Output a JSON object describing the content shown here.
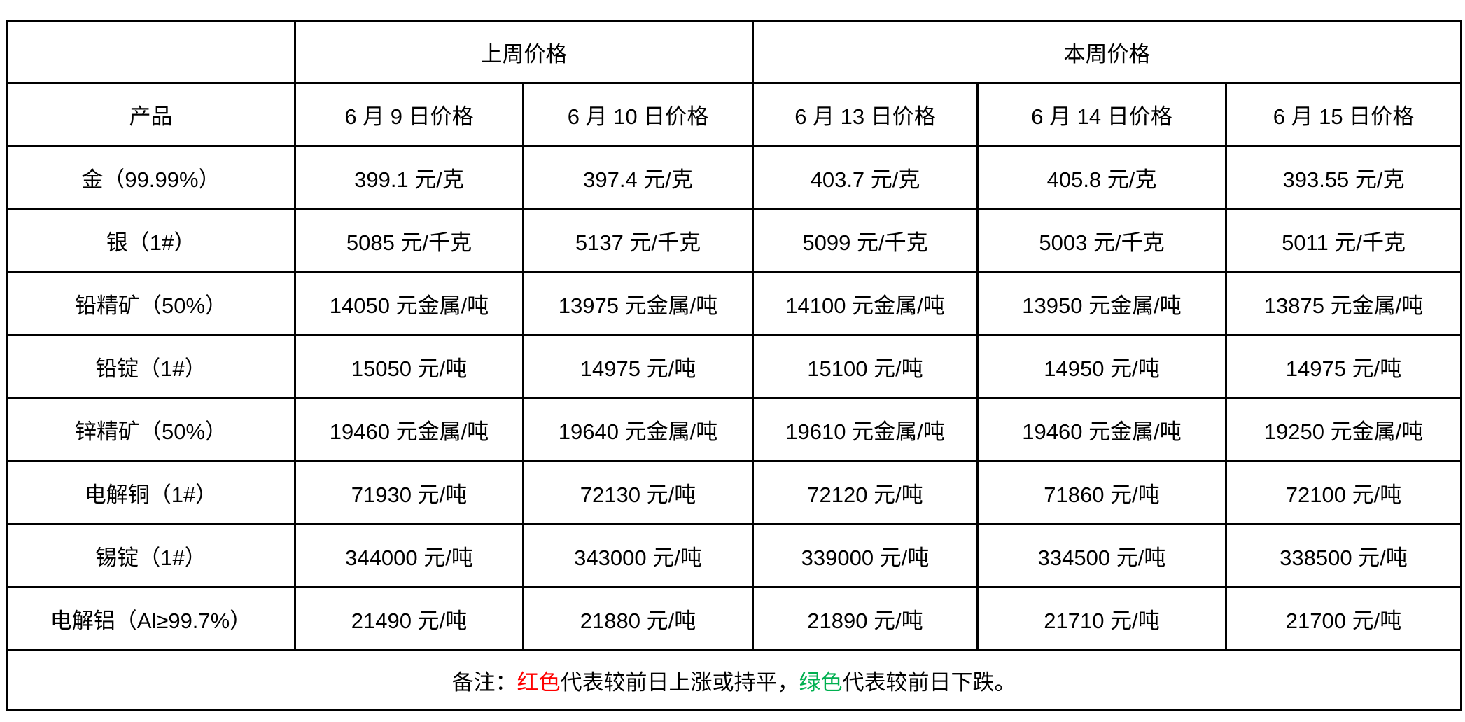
{
  "table": {
    "week_headers": {
      "last_week": "上周价格",
      "this_week": "本周价格"
    },
    "product_header": "产品",
    "date_headers": [
      "6 月 9 日价格",
      "6 月 10 日价格",
      "6 月 13 日价格",
      "6 月 14 日价格",
      "6 月 15 日价格"
    ],
    "rows": [
      {
        "product": "金（99.99%）",
        "prices": [
          {
            "text": "399.1 元/克",
            "trend": "up"
          },
          {
            "text": "397.4 元/克",
            "trend": "down"
          },
          {
            "text": "403.7 元/克",
            "trend": "up"
          },
          {
            "text": "405.8 元/克",
            "trend": "up"
          },
          {
            "text": "393.55 元/克",
            "trend": "down"
          }
        ]
      },
      {
        "product": "银（1#）",
        "prices": [
          {
            "text": "5085 元/千克",
            "trend": "down"
          },
          {
            "text": "5137 元/千克",
            "trend": "up"
          },
          {
            "text": "5099 元/千克",
            "trend": "down"
          },
          {
            "text": "5003 元/千克",
            "trend": "down"
          },
          {
            "text": "5011 元/千克",
            "trend": "up"
          }
        ]
      },
      {
        "product": "铅精矿（50%）",
        "prices": [
          {
            "text": "14050 元金属/吨",
            "trend": "up"
          },
          {
            "text": "13975 元金属/吨",
            "trend": "down"
          },
          {
            "text": "14100 元金属/吨",
            "trend": "up"
          },
          {
            "text": "13950 元金属/吨",
            "trend": "down"
          },
          {
            "text": "13875 元金属/吨",
            "trend": "down"
          }
        ]
      },
      {
        "product": "铅锭（1#）",
        "prices": [
          {
            "text": "15050 元/吨",
            "trend": "up"
          },
          {
            "text": "14975 元/吨",
            "trend": "down"
          },
          {
            "text": "15100 元/吨",
            "trend": "up"
          },
          {
            "text": "14950 元/吨",
            "trend": "down"
          },
          {
            "text": "14975 元/吨",
            "trend": "up"
          }
        ]
      },
      {
        "product": "锌精矿（50%）",
        "prices": [
          {
            "text": "19460 元金属/吨",
            "trend": "down"
          },
          {
            "text": "19640 元金属/吨",
            "trend": "up"
          },
          {
            "text": "19610 元金属/吨",
            "trend": "down"
          },
          {
            "text": "19460 元金属/吨",
            "trend": "down"
          },
          {
            "text": "19250 元金属/吨",
            "trend": "down"
          }
        ]
      },
      {
        "product": "电解铜（1#）",
        "prices": [
          {
            "text": "71930 元/吨",
            "trend": "up"
          },
          {
            "text": "72130 元/吨",
            "trend": "up"
          },
          {
            "text": "72120 元/吨",
            "trend": "down"
          },
          {
            "text": "71860 元/吨",
            "trend": "down"
          },
          {
            "text": "72100 元/吨",
            "trend": "up"
          }
        ]
      },
      {
        "product": "锡锭（1#）",
        "prices": [
          {
            "text": "344000 元/吨",
            "trend": "up"
          },
          {
            "text": "343000 元/吨",
            "trend": "down"
          },
          {
            "text": "339000 元/吨",
            "trend": "down"
          },
          {
            "text": "334500 元/吨",
            "trend": "down"
          },
          {
            "text": "338500 元/吨",
            "trend": "up"
          }
        ]
      },
      {
        "product": "电解铝（Al≥99.7%）",
        "prices": [
          {
            "text": "21490 元/吨",
            "trend": "up"
          },
          {
            "text": "21880 元/吨",
            "trend": "up"
          },
          {
            "text": "21890 元/吨",
            "trend": "up"
          },
          {
            "text": "21710 元/吨",
            "trend": "down"
          },
          {
            "text": "21700 元/吨",
            "trend": "down"
          }
        ]
      }
    ],
    "note": {
      "label": "备注：",
      "red_term": "红色",
      "red_desc": "代表较前日上涨或持平，",
      "green_term": "绿色",
      "green_desc": "代表较前日下跌。"
    }
  },
  "colors": {
    "up": "#ff0000",
    "down": "#00b050",
    "note_text": "#1f3864",
    "border": "#000000"
  }
}
